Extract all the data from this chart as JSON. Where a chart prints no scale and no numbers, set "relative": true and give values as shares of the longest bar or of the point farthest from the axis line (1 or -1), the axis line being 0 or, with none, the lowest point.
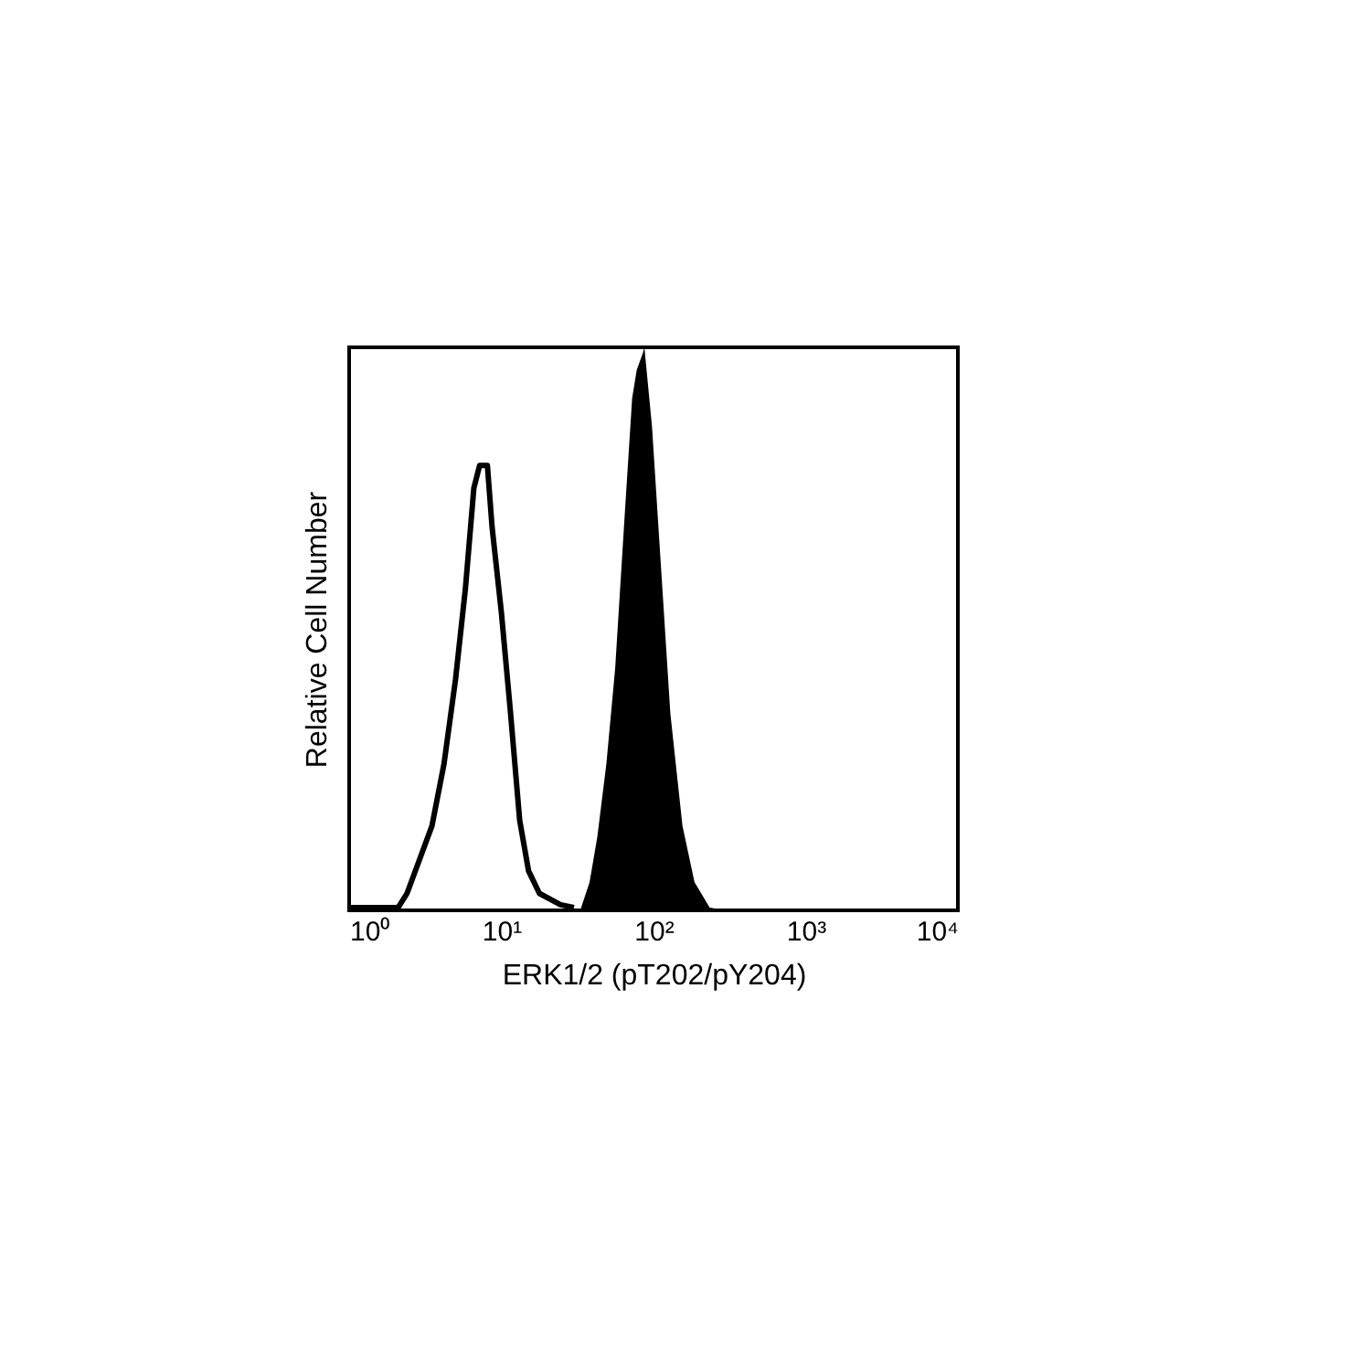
{
  "chart_data": {
    "type": "line",
    "relative": true,
    "xlabel": "ERK1/2 (pT202/pY204)",
    "ylabel": "Relative Cell Number",
    "log": "x",
    "grid": false,
    "marker": "none",
    "line_style": "solid",
    "xlim": [
      1,
      10000
    ],
    "xticks": [
      {
        "value": 1,
        "label": "10⁰"
      },
      {
        "value": 10,
        "label": "10¹"
      },
      {
        "value": 100,
        "label": "10²"
      },
      {
        "value": 1000,
        "label": "10³"
      },
      {
        "value": 10000,
        "label": "10⁴"
      }
    ],
    "series": [
      {
        "color": "#000000",
        "x": [
          1,
          2.1,
          2.4,
          2.9,
          3.5,
          4.2,
          5.0,
          5.8,
          6.6,
          7.2,
          8.1,
          8.7,
          10,
          11.5,
          13.2,
          15.1,
          17.8,
          24.5,
          30
        ],
        "values": [
          0.005,
          0.005,
          0.03,
          0.09,
          0.15,
          0.26,
          0.41,
          0.57,
          0.75,
          0.79,
          0.79,
          0.68,
          0.53,
          0.35,
          0.16,
          0.07,
          0.03,
          0.01,
          0.005
        ]
      },
      {
        "type": "area",
        "color": "#000000",
        "x": [
          33,
          38,
          42.7,
          49,
          56,
          64.6,
          72.4,
          77.6,
          85.1,
          87.1,
          97.7,
          112,
          129,
          155,
          186,
          234,
          300
        ],
        "values": [
          0,
          0.05,
          0.13,
          0.26,
          0.43,
          0.7,
          0.91,
          0.96,
          0.99,
          1.0,
          0.86,
          0.61,
          0.35,
          0.15,
          0.05,
          0.005,
          0
        ]
      }
    ]
  }
}
